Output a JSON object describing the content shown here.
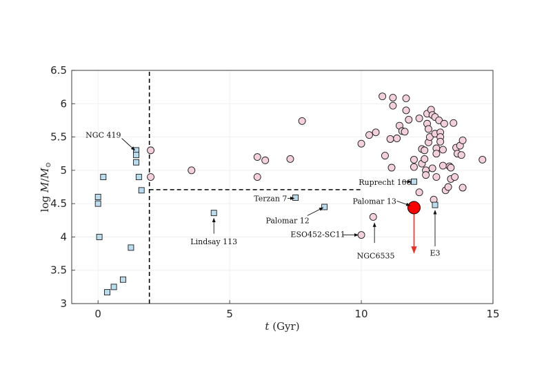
{
  "chart_data": {
    "type": "scatter",
    "title": "",
    "xlabel_var": "t",
    "xlabel_unit": " (Gyr)",
    "ylabel_prefix": "log ",
    "ylabel_num": "M",
    "ylabel_den": "M",
    "ylabel_sub": "⊙",
    "xlim": [
      -1,
      15
    ],
    "ylim": [
      3,
      6.5
    ],
    "xticks": [
      0,
      5,
      10,
      15
    ],
    "yticks": [
      3,
      3.5,
      4,
      4.5,
      5,
      5.5,
      6,
      6.5
    ],
    "ytick_labels": [
      "3",
      "3.5",
      "4",
      "4.5",
      "5",
      "5.5",
      "6",
      "6.5"
    ],
    "grid": true,
    "colors": {
      "square_fill": "#b9dcef",
      "circle_fill": "#f3d0dc",
      "highlight_fill": "#ff0000",
      "arrow_red": "#e8302a",
      "marker_edge": "#1a1a1a"
    },
    "squares": [
      {
        "x": 0.0,
        "y": 4.6
      },
      {
        "x": 0.0,
        "y": 4.5
      },
      {
        "x": 0.2,
        "y": 4.9
      },
      {
        "x": 0.05,
        "y": 4.0
      },
      {
        "x": 0.35,
        "y": 3.17
      },
      {
        "x": 0.6,
        "y": 3.25
      },
      {
        "x": 0.95,
        "y": 3.36
      },
      {
        "x": 1.25,
        "y": 3.84
      },
      {
        "x": 1.45,
        "y": 5.3
      },
      {
        "x": 1.45,
        "y": 5.23
      },
      {
        "x": 1.45,
        "y": 5.12
      },
      {
        "x": 1.55,
        "y": 4.9
      },
      {
        "x": 1.65,
        "y": 4.7
      },
      {
        "x": 4.4,
        "y": 4.36
      },
      {
        "x": 7.5,
        "y": 4.59
      },
      {
        "x": 8.6,
        "y": 4.45
      },
      {
        "x": 12.0,
        "y": 4.83
      },
      {
        "x": 12.8,
        "y": 4.48
      }
    ],
    "circles": [
      {
        "x": 2.0,
        "y": 5.3
      },
      {
        "x": 2.0,
        "y": 4.9
      },
      {
        "x": 3.55,
        "y": 5.0
      },
      {
        "x": 6.05,
        "y": 5.2
      },
      {
        "x": 6.05,
        "y": 4.9
      },
      {
        "x": 6.35,
        "y": 5.15
      },
      {
        "x": 7.3,
        "y": 5.17
      },
      {
        "x": 7.75,
        "y": 5.74
      },
      {
        "x": 10.0,
        "y": 5.4
      },
      {
        "x": 10.3,
        "y": 5.53
      },
      {
        "x": 10.55,
        "y": 5.57
      },
      {
        "x": 10.8,
        "y": 6.11
      },
      {
        "x": 10.9,
        "y": 5.22
      },
      {
        "x": 11.1,
        "y": 5.47
      },
      {
        "x": 11.15,
        "y": 5.04
      },
      {
        "x": 11.2,
        "y": 6.09
      },
      {
        "x": 11.2,
        "y": 5.97
      },
      {
        "x": 11.35,
        "y": 5.48
      },
      {
        "x": 11.45,
        "y": 5.67
      },
      {
        "x": 11.55,
        "y": 5.59
      },
      {
        "x": 11.65,
        "y": 5.58
      },
      {
        "x": 11.7,
        "y": 6.08
      },
      {
        "x": 11.7,
        "y": 5.9
      },
      {
        "x": 11.8,
        "y": 5.76
      },
      {
        "x": 12.0,
        "y": 5.16
      },
      {
        "x": 12.0,
        "y": 5.05
      },
      {
        "x": 12.2,
        "y": 5.78
      },
      {
        "x": 12.2,
        "y": 4.67
      },
      {
        "x": 12.3,
        "y": 5.32
      },
      {
        "x": 12.3,
        "y": 5.1
      },
      {
        "x": 12.4,
        "y": 5.3
      },
      {
        "x": 12.4,
        "y": 5.17
      },
      {
        "x": 12.45,
        "y": 5.0
      },
      {
        "x": 12.45,
        "y": 4.93
      },
      {
        "x": 12.5,
        "y": 5.85
      },
      {
        "x": 12.5,
        "y": 5.7
      },
      {
        "x": 12.55,
        "y": 5.62
      },
      {
        "x": 12.55,
        "y": 5.42
      },
      {
        "x": 12.6,
        "y": 5.5
      },
      {
        "x": 12.65,
        "y": 5.91
      },
      {
        "x": 12.7,
        "y": 5.83
      },
      {
        "x": 12.7,
        "y": 5.03
      },
      {
        "x": 12.75,
        "y": 4.56
      },
      {
        "x": 12.8,
        "y": 5.8
      },
      {
        "x": 12.8,
        "y": 5.55
      },
      {
        "x": 12.85,
        "y": 5.33
      },
      {
        "x": 12.85,
        "y": 5.25
      },
      {
        "x": 12.85,
        "y": 4.9
      },
      {
        "x": 12.95,
        "y": 5.75
      },
      {
        "x": 13.0,
        "y": 5.57
      },
      {
        "x": 13.0,
        "y": 5.5
      },
      {
        "x": 13.0,
        "y": 5.43
      },
      {
        "x": 13.1,
        "y": 5.31
      },
      {
        "x": 13.1,
        "y": 5.07
      },
      {
        "x": 13.15,
        "y": 5.7
      },
      {
        "x": 13.2,
        "y": 4.7
      },
      {
        "x": 13.3,
        "y": 4.75
      },
      {
        "x": 13.35,
        "y": 5.06
      },
      {
        "x": 13.4,
        "y": 5.04
      },
      {
        "x": 13.4,
        "y": 4.87
      },
      {
        "x": 13.5,
        "y": 5.71
      },
      {
        "x": 13.55,
        "y": 4.9
      },
      {
        "x": 13.6,
        "y": 5.34
      },
      {
        "x": 13.65,
        "y": 5.25
      },
      {
        "x": 13.75,
        "y": 5.37
      },
      {
        "x": 13.8,
        "y": 5.23
      },
      {
        "x": 13.85,
        "y": 5.45
      },
      {
        "x": 13.85,
        "y": 4.74
      },
      {
        "x": 14.6,
        "y": 5.16
      },
      {
        "x": 10.45,
        "y": 4.3
      },
      {
        "x": 10.0,
        "y": 4.03
      }
    ],
    "highlight": {
      "x": 12.0,
      "y": 4.44,
      "upper_limit": true,
      "arrow_to_y": 3.76
    },
    "dashed_lines": [
      {
        "x1": 1.95,
        "y1": 3.0,
        "x2": 1.95,
        "y2": 6.5
      },
      {
        "x1": 1.95,
        "y1": 4.71,
        "x2": 10.0,
        "y2": 4.71
      }
    ],
    "annotations": [
      {
        "text": "NGC 419",
        "tx": 0.2,
        "ty": 5.53,
        "anchor": "middle",
        "ax": 0.9,
        "ay": 5.48,
        "px": 1.4,
        "py": 5.3
      },
      {
        "text": "Terzan 7",
        "tx": 6.55,
        "ty": 4.58,
        "anchor": "middle",
        "ax": 7.2,
        "ay": 4.58,
        "px": 7.45,
        "py": 4.58
      },
      {
        "text": "Palomar 12",
        "tx": 7.2,
        "ty": 4.25,
        "anchor": "middle",
        "ax": 7.95,
        "ay": 4.32,
        "px": 8.55,
        "py": 4.44
      },
      {
        "text": "ESO452-SC11",
        "tx": 8.35,
        "ty": 4.04,
        "anchor": "middle",
        "ax": 9.3,
        "ay": 4.03,
        "px": 9.88,
        "py": 4.03
      },
      {
        "text": "NGC6535",
        "tx": 10.55,
        "ty": 3.72,
        "anchor": "middle",
        "ax": 10.5,
        "ay": 3.91,
        "px": 10.5,
        "py": 4.21
      },
      {
        "text": "Lindsay 113",
        "tx": 4.4,
        "ty": 3.93,
        "anchor": "middle",
        "ax": 4.4,
        "ay": 4.05,
        "px": 4.4,
        "py": 4.28
      },
      {
        "text": "Ruprecht 106",
        "tx": 10.9,
        "ty": 4.82,
        "anchor": "middle",
        "ax": 11.55,
        "ay": 4.83,
        "px": 11.9,
        "py": 4.83
      },
      {
        "text": "Palomar 13",
        "tx": 10.5,
        "ty": 4.54,
        "anchor": "middle",
        "ax": 11.35,
        "ay": 4.54,
        "px": 11.85,
        "py": 4.47
      },
      {
        "text": "E3",
        "tx": 12.8,
        "ty": 3.76,
        "anchor": "middle",
        "ax": 12.8,
        "ay": 3.86,
        "px": 12.8,
        "py": 4.4
      }
    ]
  }
}
